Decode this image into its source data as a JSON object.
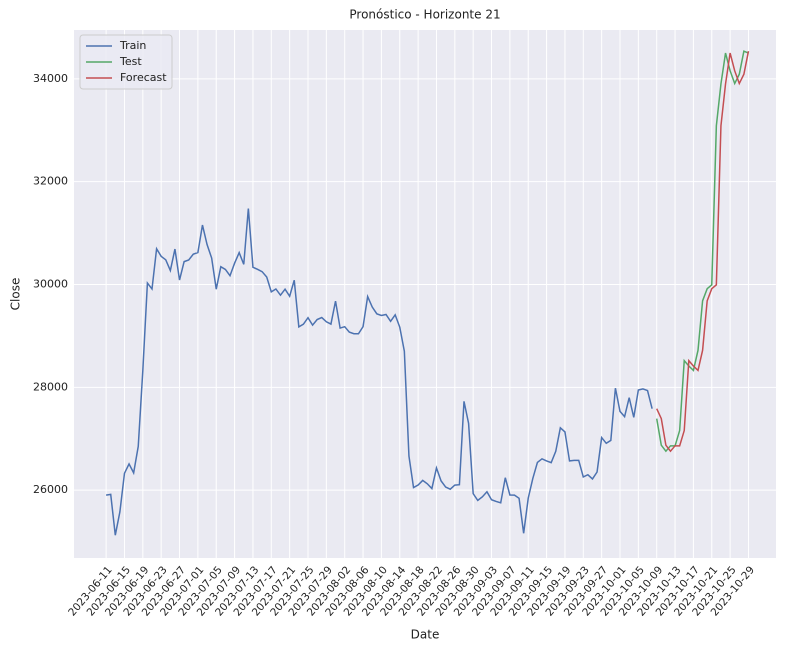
{
  "chart_data": {
    "type": "line",
    "title": "Pronóstico - Horizonte 21",
    "xlabel": "Date",
    "ylabel": "Close",
    "xlim": [
      "2023-06-04",
      "2023-11-04"
    ],
    "ylim": [
      24680,
      34950
    ],
    "yticks": [
      26000,
      28000,
      30000,
      32000,
      34000
    ],
    "xticks": [
      "2023-06-11",
      "2023-06-15",
      "2023-06-19",
      "2023-06-23",
      "2023-06-27",
      "2023-07-01",
      "2023-07-05",
      "2023-07-09",
      "2023-07-13",
      "2023-07-17",
      "2023-07-21",
      "2023-07-25",
      "2023-07-29",
      "2023-08-02",
      "2023-08-06",
      "2023-08-10",
      "2023-08-14",
      "2023-08-18",
      "2023-08-22",
      "2023-08-26",
      "2023-08-30",
      "2023-09-03",
      "2023-09-07",
      "2023-09-11",
      "2023-09-15",
      "2023-09-19",
      "2023-09-23",
      "2023-09-27",
      "2023-10-01",
      "2023-10-05",
      "2023-10-09",
      "2023-10-13",
      "2023-10-17",
      "2023-10-21",
      "2023-10-25",
      "2023-10-29"
    ],
    "grid": true,
    "legend": "upper left",
    "series": [
      {
        "name": "Train",
        "color": "#4c72b0",
        "x": [
          "2023-06-11",
          "2023-06-12",
          "2023-06-13",
          "2023-06-14",
          "2023-06-15",
          "2023-06-16",
          "2023-06-17",
          "2023-06-18",
          "2023-06-19",
          "2023-06-20",
          "2023-06-21",
          "2023-06-22",
          "2023-06-23",
          "2023-06-24",
          "2023-06-25",
          "2023-06-26",
          "2023-06-27",
          "2023-06-28",
          "2023-06-29",
          "2023-06-30",
          "2023-07-01",
          "2023-07-02",
          "2023-07-03",
          "2023-07-04",
          "2023-07-05",
          "2023-07-06",
          "2023-07-07",
          "2023-07-08",
          "2023-07-09",
          "2023-07-10",
          "2023-07-11",
          "2023-07-12",
          "2023-07-13",
          "2023-07-14",
          "2023-07-15",
          "2023-07-16",
          "2023-07-17",
          "2023-07-18",
          "2023-07-19",
          "2023-07-20",
          "2023-07-21",
          "2023-07-22",
          "2023-07-23",
          "2023-07-24",
          "2023-07-25",
          "2023-07-26",
          "2023-07-27",
          "2023-07-28",
          "2023-07-29",
          "2023-07-30",
          "2023-07-31",
          "2023-08-01",
          "2023-08-02",
          "2023-08-03",
          "2023-08-04",
          "2023-08-05",
          "2023-08-06",
          "2023-08-07",
          "2023-08-08",
          "2023-08-09",
          "2023-08-10",
          "2023-08-11",
          "2023-08-12",
          "2023-08-13",
          "2023-08-14",
          "2023-08-15",
          "2023-08-16",
          "2023-08-17",
          "2023-08-18",
          "2023-08-19",
          "2023-08-20",
          "2023-08-21",
          "2023-08-22",
          "2023-08-23",
          "2023-08-24",
          "2023-08-25",
          "2023-08-26",
          "2023-08-27",
          "2023-08-28",
          "2023-08-29",
          "2023-08-30",
          "2023-08-31",
          "2023-09-01",
          "2023-09-02",
          "2023-09-03",
          "2023-09-04",
          "2023-09-05",
          "2023-09-06",
          "2023-09-07",
          "2023-09-08",
          "2023-09-09",
          "2023-09-10",
          "2023-09-11",
          "2023-09-12",
          "2023-09-13",
          "2023-09-14",
          "2023-09-15",
          "2023-09-16",
          "2023-09-17",
          "2023-09-18",
          "2023-09-19",
          "2023-09-20",
          "2023-09-21",
          "2023-09-22",
          "2023-09-23",
          "2023-09-24",
          "2023-09-25",
          "2023-09-26",
          "2023-09-27",
          "2023-09-28",
          "2023-09-29",
          "2023-09-30",
          "2023-10-01",
          "2023-10-02",
          "2023-10-03",
          "2023-10-04",
          "2023-10-05",
          "2023-10-06",
          "2023-10-07",
          "2023-10-08"
        ],
        "values": [
          25902,
          25918,
          25124,
          25576,
          26327,
          26510,
          26336,
          26851,
          28327,
          30027,
          29912,
          30695,
          30548,
          30480,
          30271,
          30689,
          30086,
          30445,
          30477,
          30590,
          30620,
          31156,
          30777,
          30514,
          29909,
          30346,
          30292,
          30171,
          30414,
          30620,
          30392,
          31477,
          30335,
          30295,
          30249,
          30145,
          29856,
          29913,
          29792,
          29908,
          29771,
          30084,
          29176,
          29228,
          29354,
          29210,
          29319,
          29357,
          29275,
          29230,
          29676,
          29152,
          29179,
          29074,
          29042,
          29041,
          29180,
          29766,
          29561,
          29429,
          29398,
          29416,
          29283,
          29409,
          29170,
          28701,
          26664,
          26050,
          26100,
          26189,
          26124,
          26031,
          26432,
          26180,
          26060,
          26018,
          26098,
          26105,
          27727,
          27298,
          25932,
          25801,
          25869,
          25968,
          25813,
          25780,
          25753,
          26241,
          25906,
          25903,
          25841,
          25161,
          25845,
          26228,
          26539,
          26609,
          26568,
          26535,
          26755,
          27212,
          27133,
          26568,
          26580,
          26580,
          26256,
          26299,
          26218,
          26353,
          27022,
          26911,
          26967,
          27984,
          27531,
          27430,
          27799,
          27415,
          27947,
          27969,
          27936,
          27584
        ]
      },
      {
        "name": "Test",
        "color": "#55a868",
        "x": [
          "2023-10-09",
          "2023-10-10",
          "2023-10-11",
          "2023-10-12",
          "2023-10-13",
          "2023-10-14",
          "2023-10-15",
          "2023-10-16",
          "2023-10-17",
          "2023-10-18",
          "2023-10-19",
          "2023-10-20",
          "2023-10-21",
          "2023-10-22",
          "2023-10-23",
          "2023-10-24",
          "2023-10-25",
          "2023-10-26",
          "2023-10-27",
          "2023-10-28",
          "2023-10-29"
        ],
        "values": [
          27391,
          26873,
          26757,
          26862,
          26861,
          27159,
          28519,
          28415,
          28328,
          28719,
          29682,
          29918,
          29993,
          33086,
          33901,
          34502,
          34156,
          33909,
          34090,
          34538,
          34502
        ]
      },
      {
        "name": "Forecast",
        "color": "#c44e52",
        "x": [
          "2023-10-09",
          "2023-10-10",
          "2023-10-11",
          "2023-10-12",
          "2023-10-13",
          "2023-10-14",
          "2023-10-15",
          "2023-10-16",
          "2023-10-17",
          "2023-10-18",
          "2023-10-19",
          "2023-10-20",
          "2023-10-21",
          "2023-10-22",
          "2023-10-23",
          "2023-10-24",
          "2023-10-25",
          "2023-10-26",
          "2023-10-27",
          "2023-10-28",
          "2023-10-29"
        ],
        "values": [
          27584,
          27391,
          26873,
          26757,
          26862,
          26861,
          27159,
          28519,
          28415,
          28328,
          28719,
          29682,
          29918,
          29993,
          33086,
          33901,
          34502,
          34156,
          33909,
          34090,
          34538
        ]
      }
    ]
  }
}
